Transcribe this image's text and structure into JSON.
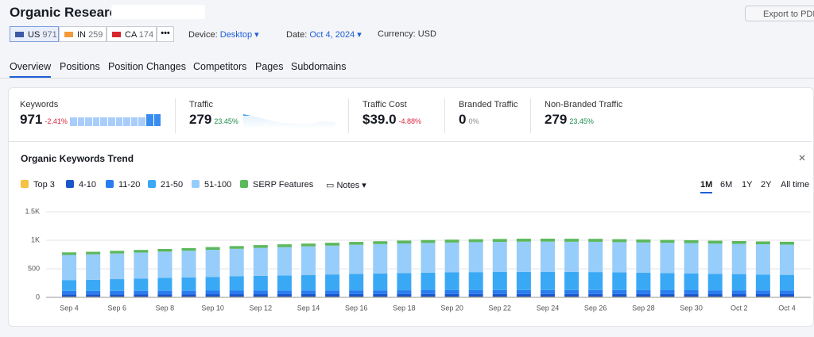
{
  "header": {
    "title": "Organic Research:",
    "export": "Export to PDF"
  },
  "databases": [
    {
      "code": "US",
      "value": 971
    },
    {
      "code": "IN",
      "value": 259
    },
    {
      "code": "CA",
      "value": 174
    }
  ],
  "filters": {
    "device_label": "Device:",
    "device": "Desktop",
    "date_label": "Date:",
    "date": "Oct 4, 2024",
    "currency": "Currency: USD"
  },
  "tabs": [
    "Overview",
    "Positions",
    "Position Changes",
    "Competitors",
    "Pages",
    "Subdomains"
  ],
  "metrics": [
    {
      "label": "Keywords",
      "value": "971",
      "change": "-2.41%"
    },
    {
      "label": "Traffic",
      "value": "279",
      "change": "23.45%"
    },
    {
      "label": "Traffic Cost",
      "value": "$39.0",
      "change": "-4.88%"
    },
    {
      "label": "Branded Traffic",
      "value": "0",
      "change": "0%"
    },
    {
      "label": "Non-Branded Traffic",
      "value": "279",
      "change": "23.45%"
    }
  ],
  "chart_controls": {
    "notes": "Notes",
    "ranges": [
      "1M",
      "6M",
      "1Y",
      "2Y",
      "All time"
    ]
  },
  "chart_data": {
    "type": "stacked-bar",
    "title": "Organic Keywords Trend",
    "categories": [
      "Sep 4",
      null,
      "Sep 6",
      null,
      "Sep 8",
      null,
      "Sep 10",
      null,
      "Sep 12",
      null,
      "Sep 14",
      null,
      "Sep 16",
      null,
      "Sep 18",
      null,
      "Sep 20",
      null,
      "Sep 22",
      null,
      "Sep 24",
      null,
      "Sep 26",
      null,
      "Sep 28",
      null,
      "Sep 30",
      null,
      "Oct 2",
      null,
      "Oct 4"
    ],
    "series": [
      {
        "name": "Top 3",
        "color": "#f5c242",
        "values": [
          8,
          8,
          8,
          8,
          8,
          8,
          8,
          8,
          8,
          8,
          8,
          8,
          8,
          8,
          8,
          8,
          8,
          8,
          8,
          8,
          8,
          8,
          8,
          8,
          8,
          8,
          8,
          8,
          8,
          8,
          8
        ]
      },
      {
        "name": "4-10",
        "color": "#1a56c9",
        "values": [
          45,
          45,
          45,
          46,
          46,
          46,
          47,
          47,
          47,
          48,
          48,
          48,
          49,
          49,
          49,
          50,
          50,
          50,
          50,
          50,
          50,
          50,
          50,
          50,
          49,
          49,
          49,
          48,
          48,
          48,
          48
        ]
      },
      {
        "name": "11-20",
        "color": "#2a7df0",
        "values": [
          60,
          60,
          61,
          61,
          62,
          62,
          63,
          63,
          64,
          64,
          65,
          65,
          66,
          66,
          67,
          67,
          68,
          68,
          69,
          69,
          70,
          70,
          70,
          69,
          69,
          68,
          68,
          67,
          67,
          66,
          66
        ]
      },
      {
        "name": "21-50",
        "color": "#3aa9f5",
        "values": [
          190,
          195,
          205,
          215,
          225,
          232,
          240,
          250,
          258,
          265,
          272,
          280,
          288,
          295,
          302,
          308,
          312,
          316,
          318,
          320,
          320,
          318,
          315,
          310,
          305,
          300,
          295,
          290,
          285,
          278,
          272
        ]
      },
      {
        "name": "51-100",
        "color": "#97cdfa",
        "values": [
          440,
          445,
          450,
          455,
          460,
          468,
          475,
          482,
          490,
          495,
          500,
          505,
          510,
          515,
          518,
          520,
          522,
          525,
          526,
          528,
          528,
          528,
          530,
          530,
          530,
          530,
          530,
          528,
          528,
          530,
          530
        ]
      },
      {
        "name": "SERP Features",
        "color": "#5cb85c",
        "values": [
          45,
          45,
          46,
          46,
          47,
          47,
          48,
          48,
          48,
          49,
          49,
          50,
          50,
          50,
          50,
          51,
          51,
          51,
          52,
          52,
          52,
          52,
          52,
          52,
          52,
          51,
          51,
          51,
          50,
          50,
          50
        ]
      }
    ],
    "ylim": [
      0,
      1500
    ],
    "yticks": [
      0,
      500,
      {
        "value": 1000,
        "label": "1K"
      },
      {
        "value": 1500,
        "label": "1.5K"
      }
    ],
    "grid": true
  }
}
